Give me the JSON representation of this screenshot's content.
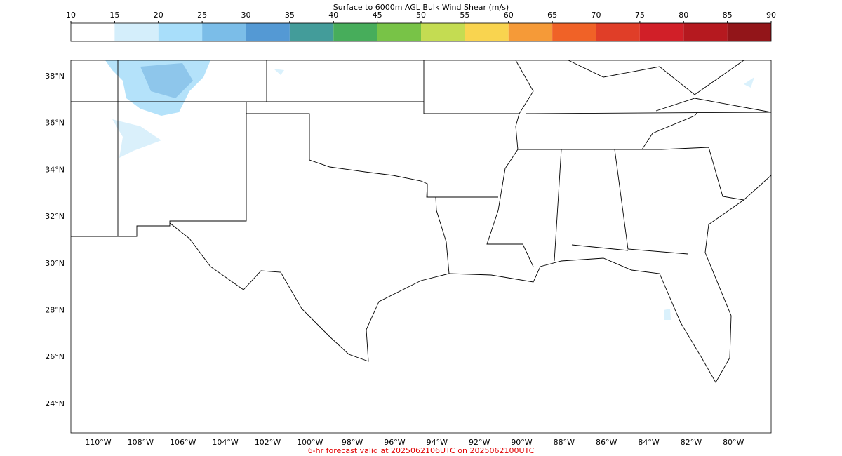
{
  "colorbar": {
    "title": "Surface to 6000m AGL Bulk Wind Shear (m/s)",
    "ticks": [
      10,
      15,
      20,
      25,
      30,
      35,
      40,
      45,
      50,
      55,
      60,
      65,
      70,
      75,
      80,
      85,
      90
    ],
    "colors": [
      "#ffffff",
      "#d4eefb",
      "#a8defa",
      "#7bbde8",
      "#5499d4",
      "#439c9a",
      "#47ad5b",
      "#78c347",
      "#c4dc52",
      "#f9d44f",
      "#f59a38",
      "#f06227",
      "#e03e28",
      "#d11f28",
      "#b5191f",
      "#921519"
    ]
  },
  "map": {
    "lat_labels": [
      "38°N",
      "36°N",
      "34°N",
      "32°N",
      "30°N",
      "28°N",
      "26°N",
      "24°N"
    ],
    "lon_labels": [
      "110°W",
      "108°W",
      "106°W",
      "104°W",
      "102°W",
      "100°W",
      "98°W",
      "96°W",
      "94°W",
      "92°W",
      "90°W",
      "88°W",
      "86°W",
      "84°W",
      "82°W",
      "80°W"
    ]
  },
  "footer": "6-hr forecast valid at 2025062106UTC on 2025062100UTC"
}
